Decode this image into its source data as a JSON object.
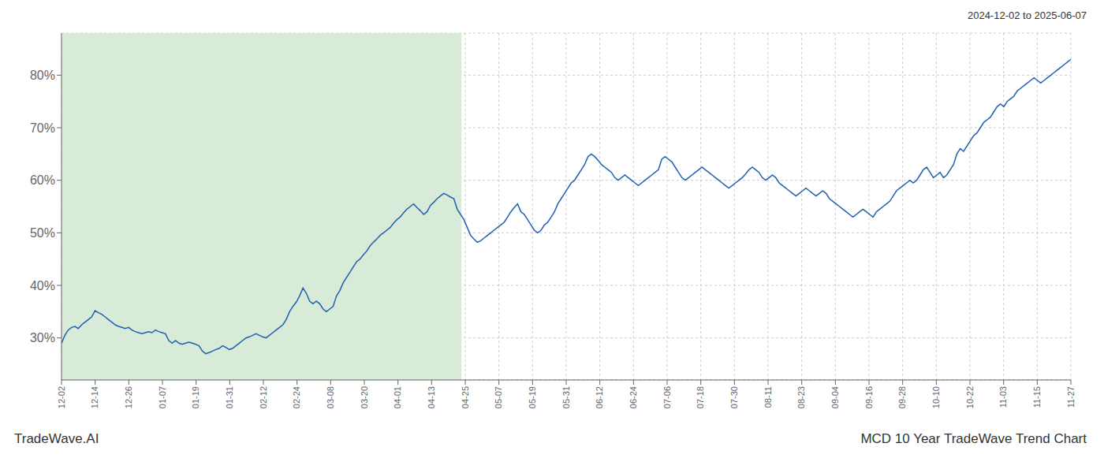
{
  "chart_data": {
    "type": "line",
    "title": "MCD 10 Year TradeWave Trend Chart",
    "subtitle": "2024-12-02 to 2025-06-07",
    "annotations": [
      "TradeWave.AI"
    ],
    "grid": true,
    "color": "#2060b0",
    "shaded_region": {
      "x": [
        0,
        119.29
      ],
      "color": "#d8ead8"
    },
    "xlim": [
      0,
      301
    ],
    "xticks": [
      {
        "value": 0,
        "label": "12-02"
      },
      {
        "value": 10.033333333333333,
        "label": "12-14"
      },
      {
        "value": 20.066666666666666,
        "label": "12-26"
      },
      {
        "value": 30.1,
        "label": "01-07"
      },
      {
        "value": 40.13333333333333,
        "label": "01-19"
      },
      {
        "value": 50.166666666666664,
        "label": "01-31"
      },
      {
        "value": 60.2,
        "label": "02-12"
      },
      {
        "value": 70.23333333333333,
        "label": "02-24"
      },
      {
        "value": 80.26666666666667,
        "label": "03-08"
      },
      {
        "value": 90.3,
        "label": "03-20"
      },
      {
        "value": 100.33333333333333,
        "label": "04-01"
      },
      {
        "value": 110.36666666666666,
        "label": "04-13"
      },
      {
        "value": 120.4,
        "label": "04-25"
      },
      {
        "value": 130.43333333333334,
        "label": "05-07"
      },
      {
        "value": 140.46666666666667,
        "label": "05-19"
      },
      {
        "value": 150.5,
        "label": "05-31"
      },
      {
        "value": 160.53333333333333,
        "label": "06-12"
      },
      {
        "value": 170.56666666666666,
        "label": "06-24"
      },
      {
        "value": 180.6,
        "label": "07-06"
      },
      {
        "value": 190.63333333333333,
        "label": "07-18"
      },
      {
        "value": 200.66666666666666,
        "label": "07-30"
      },
      {
        "value": 210.7,
        "label": "08-11"
      },
      {
        "value": 220.73333333333332,
        "label": "08-23"
      },
      {
        "value": 230.76666666666668,
        "label": "09-04"
      },
      {
        "value": 240.8,
        "label": "09-16"
      },
      {
        "value": 250.83333333333334,
        "label": "09-28"
      },
      {
        "value": 260.8666666666667,
        "label": "10-10"
      },
      {
        "value": 270.9,
        "label": "10-22"
      },
      {
        "value": 280.93333333333334,
        "label": "11-03"
      },
      {
        "value": 290.96666666666664,
        "label": "11-15"
      },
      {
        "value": 301,
        "label": "11-27"
      }
    ],
    "ylim": [
      22,
      88
    ],
    "yticks": [
      {
        "value": 30,
        "label": "30%"
      },
      {
        "value": 40,
        "label": "40%"
      },
      {
        "value": 50,
        "label": "50%"
      },
      {
        "value": 60,
        "label": "60%"
      },
      {
        "value": 70,
        "label": "70%"
      },
      {
        "value": 80,
        "label": "80%"
      }
    ],
    "values": [
      29.0,
      30.5,
      31.5,
      32.0,
      32.2,
      31.8,
      32.5,
      33.0,
      33.5,
      34.0,
      35.2,
      34.8,
      34.5,
      34.0,
      33.5,
      33.0,
      32.5,
      32.2,
      32.0,
      31.8,
      32.0,
      31.5,
      31.2,
      31.0,
      30.8,
      31.0,
      31.2,
      31.0,
      31.5,
      31.2,
      31.0,
      30.8,
      29.5,
      29.0,
      29.5,
      29.0,
      28.8,
      29.0,
      29.2,
      29.0,
      28.8,
      28.5,
      27.5,
      27.0,
      27.2,
      27.5,
      27.8,
      28.0,
      28.5,
      28.2,
      27.8,
      28.0,
      28.5,
      29.0,
      29.5,
      30.0,
      30.2,
      30.5,
      30.8,
      30.5,
      30.2,
      30.0,
      30.5,
      31.0,
      31.5,
      32.0,
      32.5,
      33.5,
      35.0,
      36.0,
      36.8,
      38.0,
      39.5,
      38.5,
      37.0,
      36.5,
      37.0,
      36.5,
      35.5,
      35.0,
      35.5,
      36.0,
      38.0,
      39.0,
      40.5,
      41.5,
      42.5,
      43.5,
      44.5,
      45.0,
      45.8,
      46.5,
      47.5,
      48.2,
      48.8,
      49.5,
      50.0,
      50.5,
      51.0,
      51.8,
      52.5,
      53.0,
      53.8,
      54.5,
      55.0,
      55.5,
      54.8,
      54.2,
      53.5,
      54.0,
      55.2,
      55.8,
      56.5,
      57.0,
      57.5,
      57.2,
      56.8,
      56.5,
      54.5,
      53.5,
      52.5,
      51.0,
      49.5,
      48.8,
      48.2,
      48.5,
      49.0,
      49.5,
      50.0,
      50.5,
      51.0,
      51.5,
      52.0,
      53.0,
      54.0,
      54.8,
      55.5,
      54.0,
      53.5,
      52.5,
      51.5,
      50.5,
      50.0,
      50.5,
      51.5,
      52.0,
      53.0,
      54.0,
      55.5,
      56.5,
      57.5,
      58.5,
      59.5,
      60.0,
      61.0,
      62.0,
      63.0,
      64.5,
      65.0,
      64.5,
      63.8,
      63.0,
      62.5,
      62.0,
      61.5,
      60.5,
      60.0,
      60.5,
      61.0,
      60.5,
      60.0,
      59.5,
      59.0,
      59.5,
      60.0,
      60.5,
      61.0,
      61.5,
      62.0,
      64.0,
      64.5,
      64.0,
      63.5,
      62.5,
      61.5,
      60.5,
      60.0,
      60.5,
      61.0,
      61.5,
      62.0,
      62.5,
      62.0,
      61.5,
      61.0,
      60.5,
      60.0,
      59.5,
      59.0,
      58.5,
      59.0,
      59.5,
      60.0,
      60.5,
      61.2,
      62.0,
      62.5,
      62.0,
      61.5,
      60.5,
      60.0,
      60.5,
      61.0,
      60.5,
      59.5,
      59.0,
      58.5,
      58.0,
      57.5,
      57.0,
      57.5,
      58.0,
      58.5,
      58.0,
      57.5,
      57.0,
      57.5,
      58.0,
      57.5,
      56.5,
      56.0,
      55.5,
      55.0,
      54.5,
      54.0,
      53.5,
      53.0,
      53.5,
      54.0,
      54.5,
      54.0,
      53.5,
      53.0,
      54.0,
      54.5,
      55.0,
      55.5,
      56.0,
      57.0,
      58.0,
      58.5,
      59.0,
      59.5,
      60.0,
      59.5,
      60.0,
      61.0,
      62.0,
      62.5,
      61.5,
      60.5,
      61.0,
      61.5,
      60.5,
      61.0,
      62.0,
      63.0,
      65.0,
      66.0,
      65.5,
      66.5,
      67.5,
      68.5,
      69.0,
      70.0,
      71.0,
      71.5,
      72.0,
      73.0,
      74.0,
      74.5,
      74.0,
      75.0,
      75.5,
      76.0,
      77.0,
      77.5,
      78.0,
      78.5,
      79.0,
      79.5,
      79.0,
      78.5,
      79.0,
      79.5,
      80.0,
      80.5,
      81.0,
      81.5,
      82.0,
      82.5,
      83.0
    ]
  }
}
